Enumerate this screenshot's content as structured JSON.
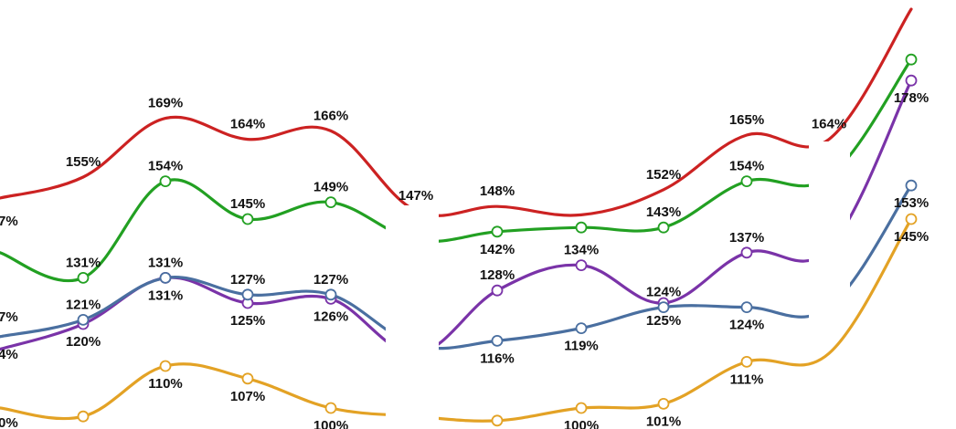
{
  "chart_data": {
    "type": "line",
    "title": "",
    "xlabel": "",
    "ylabel": "",
    "x": [
      1,
      2,
      3,
      4,
      5,
      6,
      7,
      8,
      9,
      10,
      11,
      12
    ],
    "ylim": [
      95,
      195
    ],
    "grid": false,
    "series": [
      {
        "key": "red",
        "color": "#cc2222",
        "values": [
          150,
          155,
          169,
          164,
          166,
          147,
          148,
          146,
          152,
          165,
          164,
          195
        ],
        "labels": [
          "",
          "155%",
          "169%",
          "164%",
          "166%",
          "147%",
          "148%",
          "",
          "152%",
          "165%",
          "164%",
          ""
        ],
        "markers": false
      },
      {
        "key": "green",
        "color": "#22a022",
        "values": [
          137,
          131,
          154,
          145,
          149,
          140,
          142,
          143,
          143,
          154,
          155,
          183
        ],
        "labels": [
          "",
          "131%",
          "154%",
          "145%",
          "149%",
          "",
          "142%",
          "",
          "143%",
          "154%",
          "",
          ""
        ],
        "markers": true
      },
      {
        "key": "purple",
        "color": "#7a33a8",
        "values": [
          114,
          120,
          131,
          125,
          126,
          113,
          128,
          134,
          125,
          137,
          138,
          178
        ],
        "labels": [
          "",
          "120%",
          "131%",
          "125%",
          "126%",
          "",
          "128%",
          "134%",
          "125%",
          "137%",
          "",
          "178%"
        ],
        "markers": true
      },
      {
        "key": "blue",
        "color": "#4a6fa0",
        "values": [
          117,
          121,
          131,
          127,
          127,
          115,
          116,
          119,
          124,
          124,
          124,
          153
        ],
        "labels": [
          "",
          "121%",
          "131%",
          "127%",
          "127%",
          "",
          "116%",
          "119%",
          "124%",
          "124%",
          "",
          "153%"
        ],
        "markers": true
      },
      {
        "key": "orange",
        "color": "#e3a225",
        "values": [
          100,
          98,
          110,
          107,
          100,
          98,
          97,
          100,
          101,
          111,
          113,
          145
        ],
        "labels": [
          "",
          "",
          "110%",
          "107%",
          "100%",
          "",
          "",
          "100%",
          "101%",
          "111%",
          "",
          "145%"
        ],
        "markers": true
      }
    ],
    "edge_labels": [
      "7%",
      "7%",
      "4%",
      "0%"
    ]
  }
}
